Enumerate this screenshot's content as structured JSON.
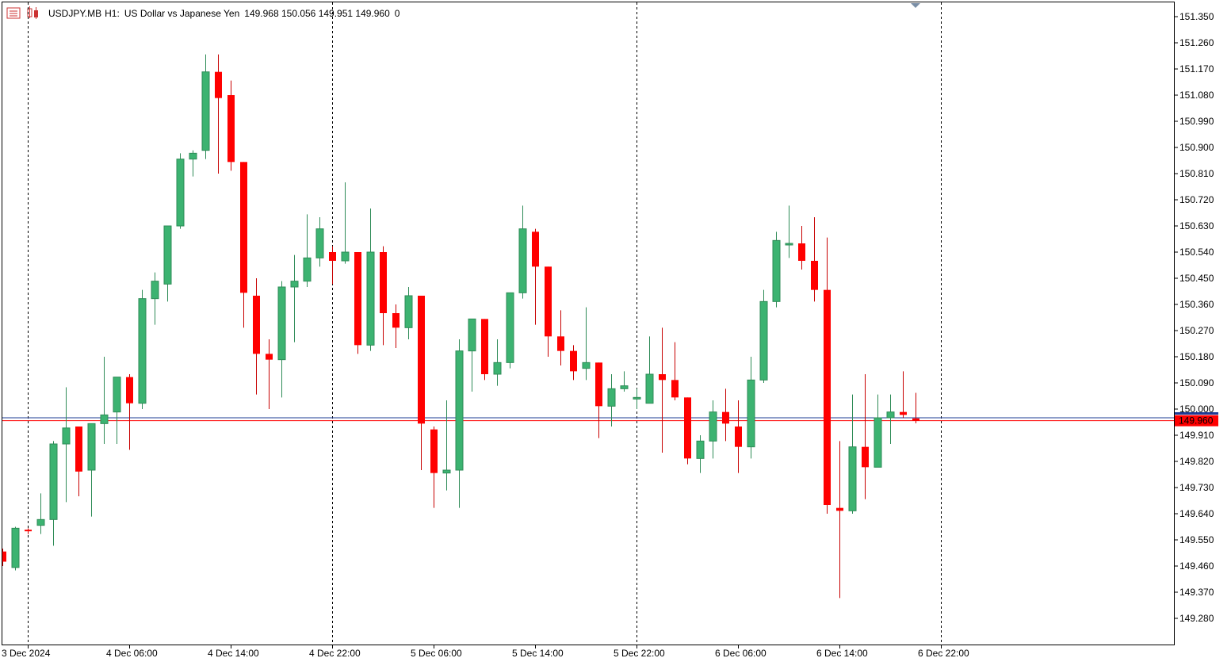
{
  "header": {
    "symbol": "USDJPY.MB",
    "timeframe": "H1:",
    "description": "US Dollar vs Japanese Yen",
    "ohlc": "149.968 150.056 149.951 149.960",
    "volume": "0"
  },
  "colors": {
    "bull": "#3cb371",
    "bear": "#ff0000",
    "bull_wick": "#2e8b57",
    "bear_wick": "#c80000",
    "bid_line": "#ff0000",
    "ask_line": "#1e3c96",
    "grid_separator": "#000000",
    "price_tag_bg": "#ff0000",
    "price_tag_text": "#ffffff"
  },
  "price_tag": "149.960",
  "chart_data": {
    "type": "candlestick",
    "symbol": "USDJPY.MB",
    "timeframe": "H1",
    "ylim": [
      149.19,
      151.41
    ],
    "y_ticks": [
      "151.350",
      "151.260",
      "151.170",
      "151.080",
      "150.990",
      "150.900",
      "150.810",
      "150.720",
      "150.630",
      "150.540",
      "150.450",
      "150.360",
      "150.270",
      "150.180",
      "150.090",
      "150.000",
      "149.910",
      "149.820",
      "149.730",
      "149.640",
      "149.550",
      "149.460",
      "149.370",
      "149.280"
    ],
    "x_labels": [
      {
        "bar": 2,
        "text": "3 Dec 2024"
      },
      {
        "bar": 10,
        "text": "4 Dec 06:00"
      },
      {
        "bar": 18,
        "text": "4 Dec 14:00"
      },
      {
        "bar": 26,
        "text": "4 Dec 22:00"
      },
      {
        "bar": 34,
        "text": "5 Dec 06:00"
      },
      {
        "bar": 42,
        "text": "5 Dec 14:00"
      },
      {
        "bar": 50,
        "text": "5 Dec 22:00"
      },
      {
        "bar": 58,
        "text": "6 Dec 06:00"
      },
      {
        "bar": 66,
        "text": "6 Dec 14:00"
      },
      {
        "bar": 74,
        "text": "6 Dec 22:00"
      }
    ],
    "day_separators": [
      2,
      26,
      50,
      74
    ],
    "bid": 149.96,
    "ask": 149.97,
    "candles": [
      [
        149.51,
        149.52,
        149.46,
        149.475
      ],
      [
        149.455,
        149.595,
        149.445,
        149.59
      ],
      [
        149.585,
        149.59,
        149.57,
        149.58
      ],
      [
        149.6,
        149.71,
        149.57,
        149.62
      ],
      [
        149.62,
        149.89,
        149.53,
        149.88
      ],
      [
        149.88,
        150.075,
        149.68,
        149.935
      ],
      [
        149.94,
        149.94,
        149.7,
        149.785
      ],
      [
        149.79,
        149.95,
        149.63,
        149.95
      ],
      [
        149.95,
        150.18,
        149.88,
        149.98
      ],
      [
        149.99,
        150.11,
        149.88,
        150.11
      ],
      [
        150.11,
        150.12,
        149.86,
        150.02
      ],
      [
        150.02,
        150.41,
        150.0,
        150.38
      ],
      [
        150.38,
        150.47,
        150.29,
        150.44
      ],
      [
        150.43,
        150.63,
        150.37,
        150.63
      ],
      [
        150.63,
        150.88,
        150.62,
        150.86
      ],
      [
        150.86,
        150.89,
        150.8,
        150.88
      ],
      [
        150.89,
        151.22,
        150.86,
        151.16
      ],
      [
        151.16,
        151.22,
        150.81,
        151.07
      ],
      [
        151.08,
        151.13,
        150.82,
        150.85
      ],
      [
        150.85,
        150.85,
        150.28,
        150.4
      ],
      [
        150.39,
        150.45,
        150.05,
        150.19
      ],
      [
        150.19,
        150.24,
        150.0,
        150.17
      ],
      [
        150.17,
        150.44,
        150.04,
        150.42
      ],
      [
        150.42,
        150.53,
        150.23,
        150.44
      ],
      [
        150.44,
        150.67,
        150.42,
        150.52
      ],
      [
        150.52,
        150.66,
        150.49,
        150.62
      ],
      [
        150.54,
        150.56,
        150.43,
        150.51
      ],
      [
        150.51,
        150.78,
        150.5,
        150.54
      ],
      [
        150.54,
        150.54,
        150.19,
        150.22
      ],
      [
        150.22,
        150.69,
        150.2,
        150.54
      ],
      [
        150.54,
        150.56,
        150.22,
        150.33
      ],
      [
        150.33,
        150.36,
        150.21,
        150.28
      ],
      [
        150.28,
        150.42,
        150.24,
        150.39
      ],
      [
        150.39,
        150.39,
        149.79,
        149.95
      ],
      [
        149.93,
        149.94,
        149.66,
        149.78
      ],
      [
        149.78,
        150.03,
        149.72,
        149.79
      ],
      [
        149.79,
        150.24,
        149.66,
        150.2
      ],
      [
        150.2,
        150.31,
        150.06,
        150.31
      ],
      [
        150.31,
        150.31,
        150.1,
        150.12
      ],
      [
        150.12,
        150.24,
        150.08,
        150.16
      ],
      [
        150.16,
        150.4,
        150.14,
        150.4
      ],
      [
        150.4,
        150.7,
        150.38,
        150.62
      ],
      [
        150.61,
        150.62,
        150.29,
        150.49
      ],
      [
        150.49,
        150.49,
        150.18,
        150.25
      ],
      [
        150.25,
        150.34,
        150.15,
        150.2
      ],
      [
        150.2,
        150.22,
        150.1,
        150.13
      ],
      [
        150.14,
        150.35,
        150.1,
        150.16
      ],
      [
        150.16,
        150.16,
        149.9,
        150.01
      ],
      [
        150.01,
        150.12,
        149.94,
        150.07
      ],
      [
        150.07,
        150.13,
        150.06,
        150.08
      ],
      [
        150.04,
        150.07,
        150.0,
        150.04
      ],
      [
        150.02,
        150.25,
        150.02,
        150.12
      ],
      [
        150.12,
        150.28,
        149.85,
        150.1
      ],
      [
        150.1,
        150.23,
        150.03,
        150.04
      ],
      [
        150.04,
        150.04,
        149.81,
        149.83
      ],
      [
        149.83,
        149.91,
        149.78,
        149.89
      ],
      [
        149.89,
        150.03,
        149.83,
        149.99
      ],
      [
        149.99,
        150.07,
        149.89,
        149.95
      ],
      [
        149.94,
        150.03,
        149.78,
        149.87
      ],
      [
        149.87,
        150.18,
        149.83,
        150.1
      ],
      [
        150.1,
        150.41,
        150.09,
        150.37
      ],
      [
        150.37,
        150.61,
        150.35,
        150.58
      ],
      [
        150.57,
        150.7,
        150.52,
        150.57
      ],
      [
        150.57,
        150.63,
        150.48,
        150.51
      ],
      [
        150.51,
        150.66,
        150.37,
        150.41
      ],
      [
        150.41,
        150.59,
        149.64,
        149.67
      ],
      [
        149.66,
        149.89,
        149.35,
        149.65
      ],
      [
        149.65,
        150.05,
        149.64,
        149.87
      ],
      [
        149.87,
        150.12,
        149.69,
        149.8
      ],
      [
        149.8,
        150.05,
        149.8,
        149.97
      ],
      [
        149.97,
        150.05,
        149.88,
        149.99
      ],
      [
        149.99,
        150.13,
        149.97,
        149.98
      ],
      [
        149.968,
        150.056,
        149.951,
        149.96
      ]
    ]
  }
}
